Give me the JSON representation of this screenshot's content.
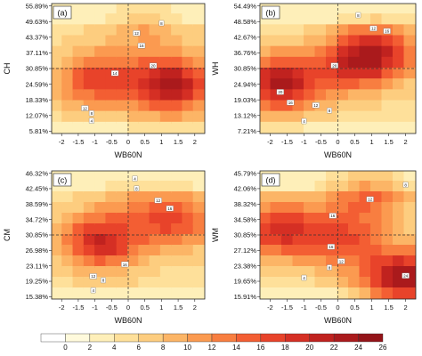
{
  "chart_data": {
    "type": "heatmap",
    "panels": [
      {
        "tag": "(a)",
        "xlabel": "WB60N",
        "ylabel": "CH",
        "xticks": [
          "-2",
          "-1.5",
          "-1",
          "-0.5",
          "0",
          "0.5",
          "1",
          "1.5",
          "2"
        ],
        "yticks": [
          "55.89%",
          "49.63%",
          "43.37%",
          "37.11%",
          "30.85%",
          "24.59%",
          "18.33%",
          "12.07%",
          "5.81%"
        ],
        "hot_centers": [
          {
            "x": 1.3,
            "y": 24,
            "intensity": 23
          },
          {
            "x": -0.9,
            "y": 26,
            "intensity": 17
          },
          {
            "x": 0.5,
            "y": 48,
            "intensity": 10
          }
        ],
        "markers": [
          {
            "x": 0.25,
            "y": 45,
            "label": "12"
          },
          {
            "x": 1.0,
            "y": 49,
            "label": "8"
          },
          {
            "x": 0.4,
            "y": 40,
            "label": "16"
          },
          {
            "x": 0.75,
            "y": 32,
            "label": "20"
          },
          {
            "x": -0.4,
            "y": 29,
            "label": "14"
          },
          {
            "x": -1.3,
            "y": 15,
            "label": "12"
          },
          {
            "x": -1.1,
            "y": 13,
            "label": "8"
          },
          {
            "x": -1.1,
            "y": 10,
            "label": "4"
          }
        ]
      },
      {
        "tag": "(b)",
        "xlabel": "WB60N",
        "ylabel": "WH",
        "xticks": [
          "-2",
          "-1.5",
          "-1",
          "-0.5",
          "0",
          "0.5",
          "1",
          "1.5",
          "2"
        ],
        "yticks": [
          "54.49%",
          "48.58%",
          "42.67%",
          "36.76%",
          "30.85%",
          "24.94%",
          "19.03%",
          "13.12%",
          "7.21%"
        ],
        "hot_centers": [
          {
            "x": -1.7,
            "y": 25,
            "intensity": 22
          },
          {
            "x": 1.2,
            "y": 37,
            "intensity": 19
          },
          {
            "x": 0.3,
            "y": 31,
            "intensity": 14
          }
        ],
        "markers": [
          {
            "x": 0.6,
            "y": 51,
            "label": "8"
          },
          {
            "x": 1.05,
            "y": 46,
            "label": "12"
          },
          {
            "x": 1.45,
            "y": 45,
            "label": "16"
          },
          {
            "x": -0.1,
            "y": 32,
            "label": "20"
          },
          {
            "x": -1.7,
            "y": 22,
            "label": "20"
          },
          {
            "x": -1.4,
            "y": 18,
            "label": "16"
          },
          {
            "x": -0.65,
            "y": 17,
            "label": "12"
          },
          {
            "x": -0.25,
            "y": 15,
            "label": "8"
          },
          {
            "x": -1.0,
            "y": 11,
            "label": "4"
          }
        ]
      },
      {
        "tag": "(c)",
        "xlabel": "WB60N",
        "ylabel": "CM",
        "xticks": [
          "-2",
          "-1.5",
          "-1",
          "-0.5",
          "0",
          "0.5",
          "1",
          "1.5",
          "2"
        ],
        "yticks": [
          "46.32%",
          "42.45%",
          "38.59%",
          "34.72%",
          "30.85%",
          "26.98%",
          "23.11%",
          "19.25%",
          "15.38%"
        ],
        "hot_centers": [
          {
            "x": -0.8,
            "y": 29,
            "intensity": 20
          },
          {
            "x": 1.4,
            "y": 34,
            "intensity": 16
          },
          {
            "x": 0.2,
            "y": 40,
            "intensity": 8
          }
        ],
        "markers": [
          {
            "x": 0.2,
            "y": 45,
            "label": "4"
          },
          {
            "x": 0.25,
            "y": 42.5,
            "label": "8"
          },
          {
            "x": 0.9,
            "y": 39.5,
            "label": "12"
          },
          {
            "x": 1.25,
            "y": 37.5,
            "label": "16"
          },
          {
            "x": -0.1,
            "y": 23.5,
            "label": "16"
          },
          {
            "x": -1.05,
            "y": 20.5,
            "label": "12"
          },
          {
            "x": -0.75,
            "y": 19.5,
            "label": "8"
          },
          {
            "x": -1.05,
            "y": 17,
            "label": "4"
          }
        ]
      },
      {
        "tag": "(d)",
        "xlabel": "WB60N",
        "ylabel": "WM",
        "xticks": [
          "-2",
          "-1.5",
          "-1",
          "-0.5",
          "0",
          "0.5",
          "1",
          "1.5",
          "2"
        ],
        "yticks": [
          "45.79%",
          "42.06%",
          "38.32%",
          "34.58%",
          "30.85%",
          "27.12%",
          "23.38%",
          "19.65%",
          "15.91%"
        ],
        "hot_centers": [
          {
            "x": -1.7,
            "y": 32,
            "intensity": 19
          },
          {
            "x": 0.9,
            "y": 40,
            "intensity": 14
          },
          {
            "x": 2.0,
            "y": 20,
            "intensity": 24
          },
          {
            "x": 0.2,
            "y": 29,
            "intensity": 15
          }
        ],
        "markers": [
          {
            "x": 2.0,
            "y": 43,
            "label": "8"
          },
          {
            "x": 0.95,
            "y": 39.5,
            "label": "12"
          },
          {
            "x": -0.15,
            "y": 35.5,
            "label": "16"
          },
          {
            "x": -0.2,
            "y": 28,
            "label": "16"
          },
          {
            "x": 0.1,
            "y": 24.5,
            "label": "12"
          },
          {
            "x": -0.25,
            "y": 23,
            "label": "8"
          },
          {
            "x": -1.0,
            "y": 20.5,
            "label": "4"
          },
          {
            "x": 2.0,
            "y": 21,
            "label": "24"
          }
        ]
      }
    ],
    "colorbar": {
      "labels": [
        "0",
        "2",
        "4",
        "6",
        "8",
        "10",
        "12",
        "14",
        "16",
        "18",
        "20",
        "22",
        "24",
        "26"
      ],
      "colors": [
        "#ffffff",
        "#fffadc",
        "#feefb9",
        "#fee09a",
        "#fdcd7f",
        "#fcb566",
        "#fb9a50",
        "#f87e40",
        "#f35e33",
        "#e8432a",
        "#d52f24",
        "#c0221f",
        "#aa1a1c",
        "#931318"
      ]
    },
    "x_range": [
      -2.3,
      2.3
    ]
  }
}
